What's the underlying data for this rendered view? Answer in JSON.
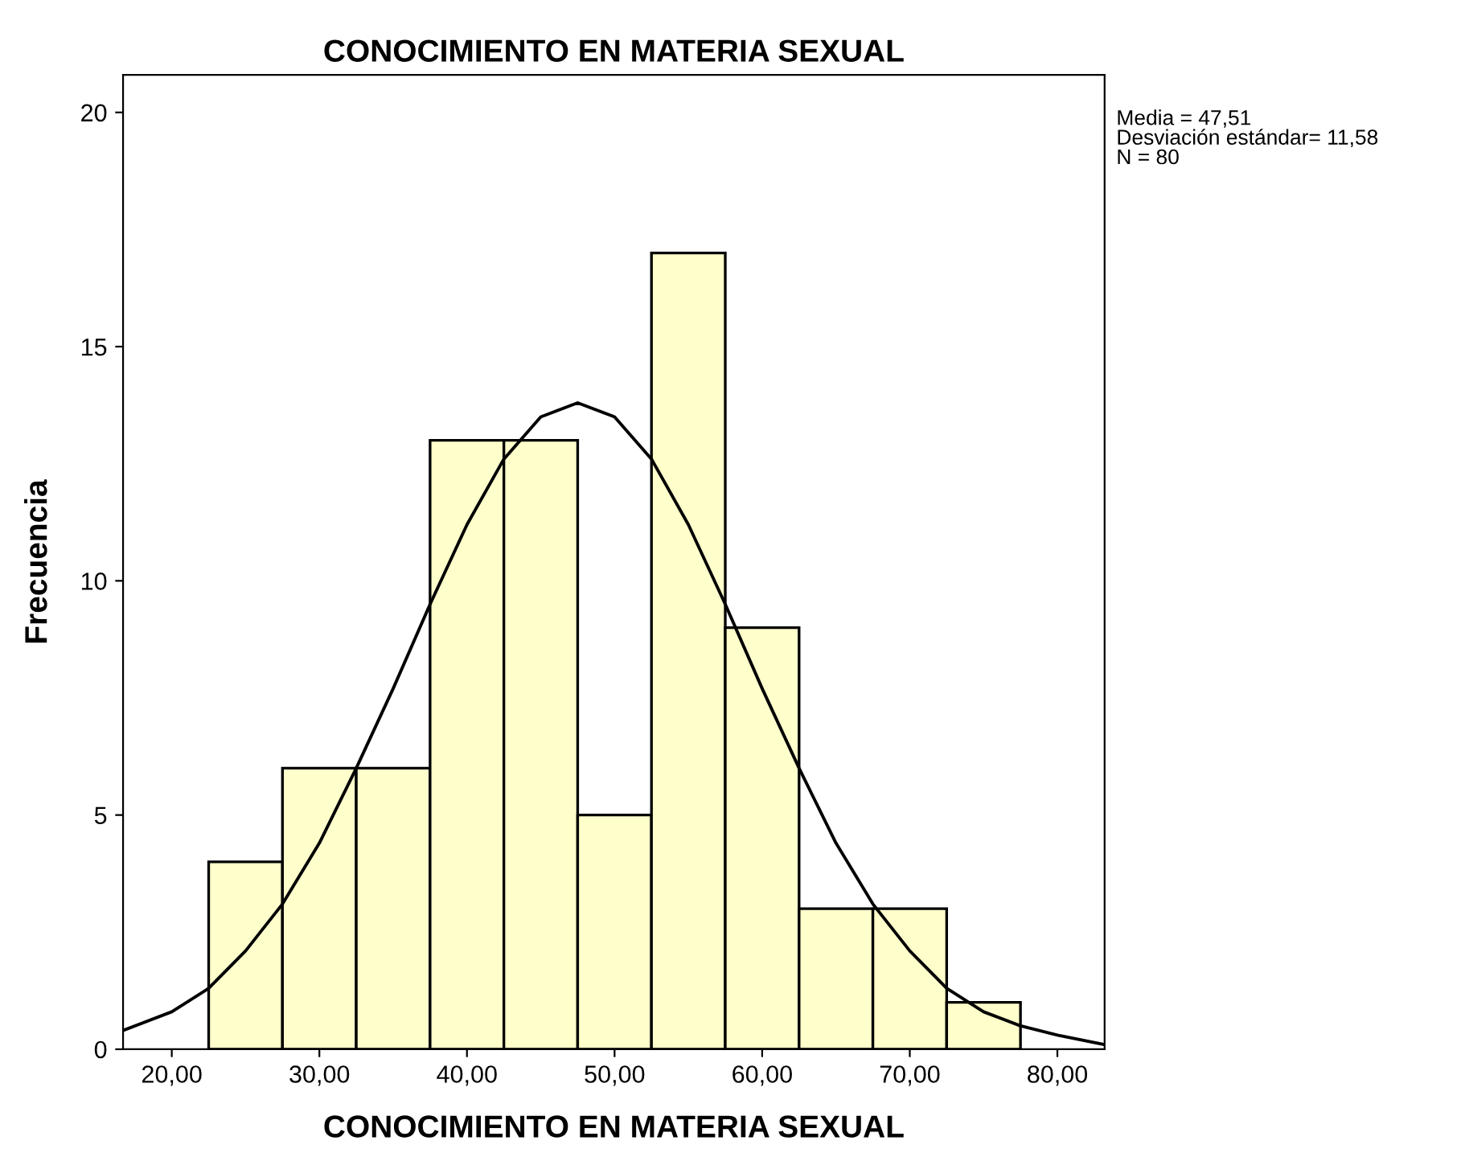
{
  "chart_data": {
    "type": "histogram",
    "title": "CONOCIMIENTO EN MATERIA SEXUAL",
    "xlabel": "CONOCIMIENTO EN MATERIA SEXUAL",
    "ylabel": "Frecuencia",
    "bins": [
      22.5,
      27.5,
      32.5,
      37.5,
      42.5,
      47.5,
      52.5,
      57.5,
      62.5,
      67.5,
      72.5,
      77.5
    ],
    "values": [
      4,
      6,
      6,
      13,
      13,
      5,
      17,
      9,
      3,
      3,
      1
    ],
    "color": "#ffffcc",
    "series": [
      {
        "type": "line",
        "color": "#000000",
        "x": [
          16.7,
          20,
          22.5,
          25,
          27.5,
          30,
          32.5,
          35,
          37.5,
          40,
          42.5,
          45,
          47.5,
          50,
          52.5,
          55,
          57.5,
          60,
          62.5,
          65,
          67.5,
          70,
          72.5,
          75,
          77.5,
          80,
          83.2
        ],
        "values": [
          0.4,
          0.8,
          1.3,
          2.1,
          3.1,
          4.4,
          6.0,
          7.7,
          9.5,
          11.2,
          12.6,
          13.5,
          13.8,
          13.5,
          12.6,
          11.2,
          9.5,
          7.7,
          6.0,
          4.4,
          3.1,
          2.1,
          1.3,
          0.8,
          0.5,
          0.3,
          0.1
        ]
      }
    ],
    "xlim": [
      16.7,
      83.2
    ],
    "ylim": [
      0,
      20.8
    ],
    "xticks": [
      {
        "value": 20,
        "label": "20,00"
      },
      {
        "value": 30,
        "label": "30,00"
      },
      {
        "value": 40,
        "label": "40,00"
      },
      {
        "value": 50,
        "label": "50,00"
      },
      {
        "value": 60,
        "label": "60,00"
      },
      {
        "value": 70,
        "label": "70,00"
      },
      {
        "value": 80,
        "label": "80,00"
      }
    ],
    "yticks": [
      0,
      5,
      10,
      15,
      20
    ],
    "annotations": [
      "Media = 47,51",
      "Desviación estándar= 11,58",
      "N = 80"
    ]
  }
}
